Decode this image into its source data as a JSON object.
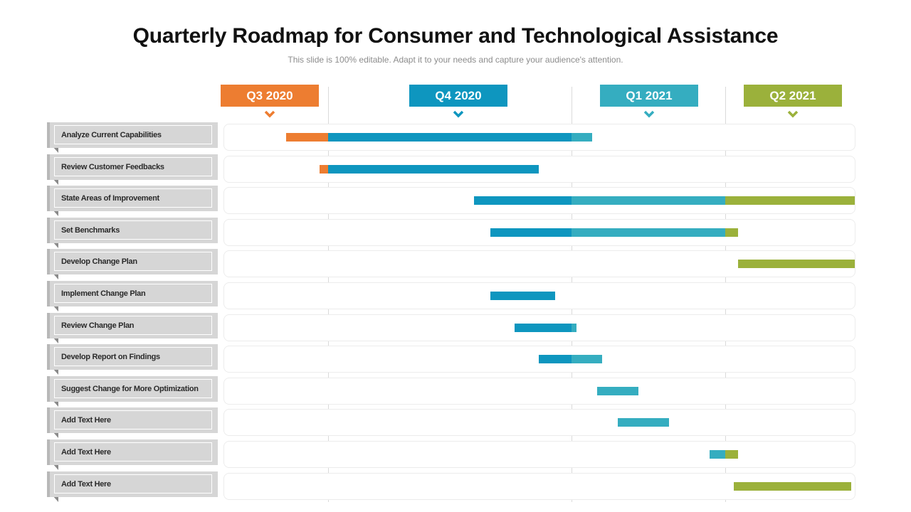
{
  "header": {
    "title": "Quarterly Roadmap for Consumer and Technological Assistance",
    "subtitle": "This slide is 100% editable. Adapt it to your needs and capture your audience's attention."
  },
  "colors": {
    "q3_2020": "#ED7D31",
    "q4_2020": "#0E96BF",
    "q1_2021": "#35ADC0",
    "q2_2021": "#9BB13B"
  },
  "chart_data": {
    "type": "gantt",
    "title": "Quarterly Roadmap for Consumer and Technological Assistance",
    "time_unit": "months from start of Q3 2020",
    "axis_range": [
      0,
      12
    ],
    "quarters": [
      {
        "label": "Q3 2020",
        "start": 0,
        "end": 3,
        "color": "#ED7D31"
      },
      {
        "label": "Q4 2020",
        "start": 3,
        "end": 6,
        "color": "#0E96BF"
      },
      {
        "label": "Q1 2021",
        "start": 6,
        "end": 9,
        "color": "#35ADC0"
      },
      {
        "label": "Q2 2021",
        "start": 9,
        "end": 12,
        "color": "#9BB13B"
      }
    ],
    "tasks": [
      {
        "label": "Analyze Current Capabilities",
        "start": 1.8,
        "end": 6.4
      },
      {
        "label": "Review Customer Feedbacks",
        "start": 2.75,
        "end": 5.6
      },
      {
        "label": "State Areas of Improvement",
        "start": 4.8,
        "end": 12
      },
      {
        "label": "Set Benchmarks",
        "start": 5.0,
        "end": 9.3
      },
      {
        "label": "Develop Change Plan",
        "start": 9.3,
        "end": 12
      },
      {
        "label": "Implement Change Plan",
        "start": 5.0,
        "end": 5.8
      },
      {
        "label": "Review Change Plan",
        "start": 5.3,
        "end": 6.1
      },
      {
        "label": "Develop Report on Findings",
        "start": 5.6,
        "end": 6.6
      },
      {
        "label": "Suggest Change for More Optimization",
        "start": 6.5,
        "end": 7.3
      },
      {
        "label": "Add Text Here",
        "start": 6.9,
        "end": 7.9
      },
      {
        "label": "Add Text Here",
        "start": 8.7,
        "end": 9.3
      },
      {
        "label": "Add Text Here",
        "start": 9.2,
        "end": 11.9
      }
    ]
  }
}
